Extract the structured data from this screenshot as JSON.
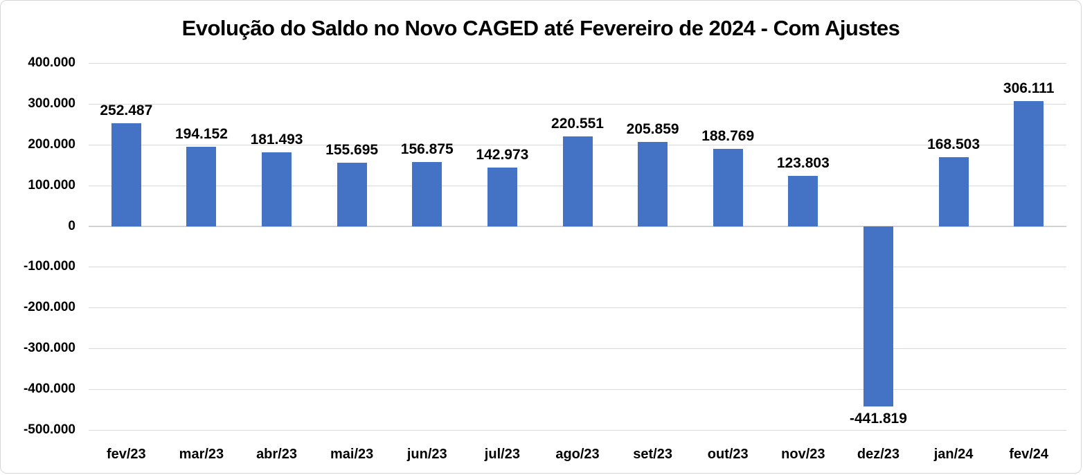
{
  "chart_data": {
    "type": "bar",
    "title": "Evolução do Saldo no Novo CAGED até Fevereiro de 2024 - Com Ajustes",
    "categories": [
      "fev/23",
      "mar/23",
      "abr/23",
      "mai/23",
      "jun/23",
      "jul/23",
      "ago/23",
      "set/23",
      "out/23",
      "nov/23",
      "dez/23",
      "jan/24",
      "fev/24"
    ],
    "values": [
      252487,
      194152,
      181493,
      155695,
      156875,
      142973,
      220551,
      205859,
      188769,
      123803,
      -441819,
      168503,
      306111
    ],
    "data_labels": [
      "252.487",
      "194.152",
      "181.493",
      "155.695",
      "156.875",
      "142.973",
      "220.551",
      "205.859",
      "188.769",
      "123.803",
      "-441.819",
      "168.503",
      "306.111"
    ],
    "xlabel": "",
    "ylabel": "",
    "ylim": [
      -500000,
      400000
    ],
    "y_axis_ticks": [
      {
        "label": "400.000",
        "value": 400000
      },
      {
        "label": "300.000",
        "value": 300000
      },
      {
        "label": "200.000",
        "value": 200000
      },
      {
        "label": "100.000",
        "value": 100000
      },
      {
        "label": "0",
        "value": 0
      },
      {
        "label": "-100.000",
        "value": -100000
      },
      {
        "label": "-200.000",
        "value": -200000
      },
      {
        "label": "-300.000",
        "value": -300000
      },
      {
        "label": "-400.000",
        "value": -400000
      },
      {
        "label": "-500.000",
        "value": -500000
      }
    ],
    "grid": true,
    "legend": false,
    "bar_color": "#4472C4",
    "gridline_color": "#D9D9D9",
    "text_color": "#000000"
  }
}
